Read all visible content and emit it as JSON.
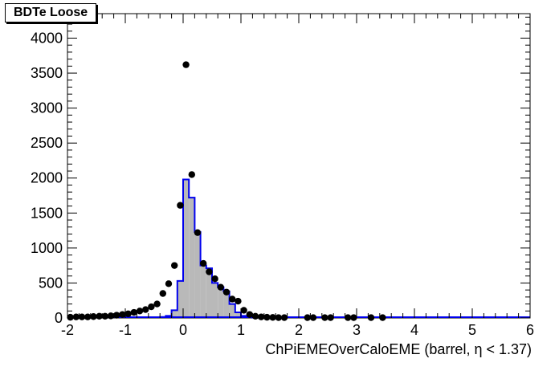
{
  "chart_data": {
    "type": "histogram",
    "title": "BDTe Loose",
    "xlabel": "ChPiEMEOverCaloEME (barrel,    η < 1.37)",
    "ylabel": "",
    "xlim": [
      -2,
      6
    ],
    "ylim": [
      0,
      4350
    ],
    "x_ticks": [
      "-2",
      "-1",
      "0",
      "1",
      "2",
      "3",
      "4",
      "5",
      "6"
    ],
    "y_ticks": [
      "0",
      "500",
      "1000",
      "1500",
      "2000",
      "2500",
      "3000",
      "3500",
      "4000"
    ],
    "grid": false,
    "histogram": {
      "bin_width": 0.1,
      "fill_color": "#b9b9b9",
      "line_color": "#0000ee",
      "bins": [
        {
          "x": -0.4,
          "value": 15
        },
        {
          "x": -0.3,
          "value": 30
        },
        {
          "x": -0.2,
          "value": 110
        },
        {
          "x": -0.1,
          "value": 530
        },
        {
          "x": 0.0,
          "value": 1980
        },
        {
          "x": 0.1,
          "value": 1720
        },
        {
          "x": 0.2,
          "value": 1230
        },
        {
          "x": 0.3,
          "value": 750
        },
        {
          "x": 0.4,
          "value": 710
        },
        {
          "x": 0.5,
          "value": 500
        },
        {
          "x": 0.6,
          "value": 440
        },
        {
          "x": 0.7,
          "value": 380
        },
        {
          "x": 0.8,
          "value": 200
        },
        {
          "x": 0.9,
          "value": 80
        },
        {
          "x": 1.0,
          "value": 30
        },
        {
          "x": 1.1,
          "value": 12
        },
        {
          "x": 1.2,
          "value": 5
        }
      ]
    },
    "points": {
      "color": "#000000",
      "x": [
        -1.95,
        -1.85,
        -1.75,
        -1.65,
        -1.55,
        -1.45,
        -1.35,
        -1.25,
        -1.15,
        -1.05,
        -0.95,
        -0.85,
        -0.75,
        -0.65,
        -0.55,
        -0.45,
        -0.35,
        -0.25,
        -0.15,
        -0.05,
        0.05,
        0.15,
        0.25,
        0.35,
        0.45,
        0.55,
        0.65,
        0.75,
        0.85,
        0.95,
        1.05,
        1.15,
        1.25,
        1.35,
        1.45,
        1.55,
        1.65,
        1.75,
        2.15,
        2.25,
        2.45,
        2.55,
        2.85,
        2.95,
        3.25,
        3.45
      ],
      "y": [
        10,
        15,
        15,
        15,
        20,
        25,
        25,
        30,
        40,
        50,
        60,
        80,
        100,
        120,
        160,
        200,
        350,
        490,
        750,
        1610,
        3620,
        2050,
        1220,
        780,
        660,
        560,
        440,
        370,
        270,
        240,
        110,
        50,
        25,
        15,
        10,
        8,
        5,
        5,
        5,
        5,
        5,
        5,
        5,
        5,
        5,
        5
      ]
    }
  }
}
